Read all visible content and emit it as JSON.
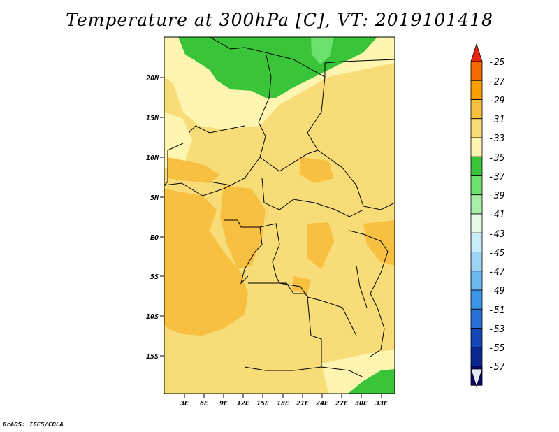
{
  "title": "Temperature at 300hPa [C], VT: 2019101418",
  "credit": "GrADS: IGES/COLA",
  "map": {
    "lat_labels": [
      "20N",
      "15N",
      "10N",
      "5N",
      "EQ",
      "5S",
      "10S",
      "15S"
    ],
    "lon_labels": [
      "3E",
      "6E",
      "9E",
      "12E",
      "15E",
      "18E",
      "21E",
      "24E",
      "27E",
      "30E",
      "33E"
    ]
  },
  "colorbar": {
    "levels": [
      "-25",
      "-27",
      "-29",
      "-31",
      "-33",
      "-35",
      "-37",
      "-39",
      "-41",
      "-43",
      "-45",
      "-47",
      "-49",
      "-51",
      "-53",
      "-55",
      "-57"
    ],
    "colors": [
      "#e8250e",
      "#f46a00",
      "#f8a000",
      "#f8c040",
      "#f8dc78",
      "#fef5b0",
      "#3ac43a",
      "#6ee06e",
      "#a8eea8",
      "#e4fae4",
      "#c8ecfa",
      "#9cd4f4",
      "#6cb8f0",
      "#3c96e8",
      "#2870d8",
      "#1448b8",
      "#0a2890",
      "#0a0a6c",
      "#e8e8f8"
    ]
  }
}
